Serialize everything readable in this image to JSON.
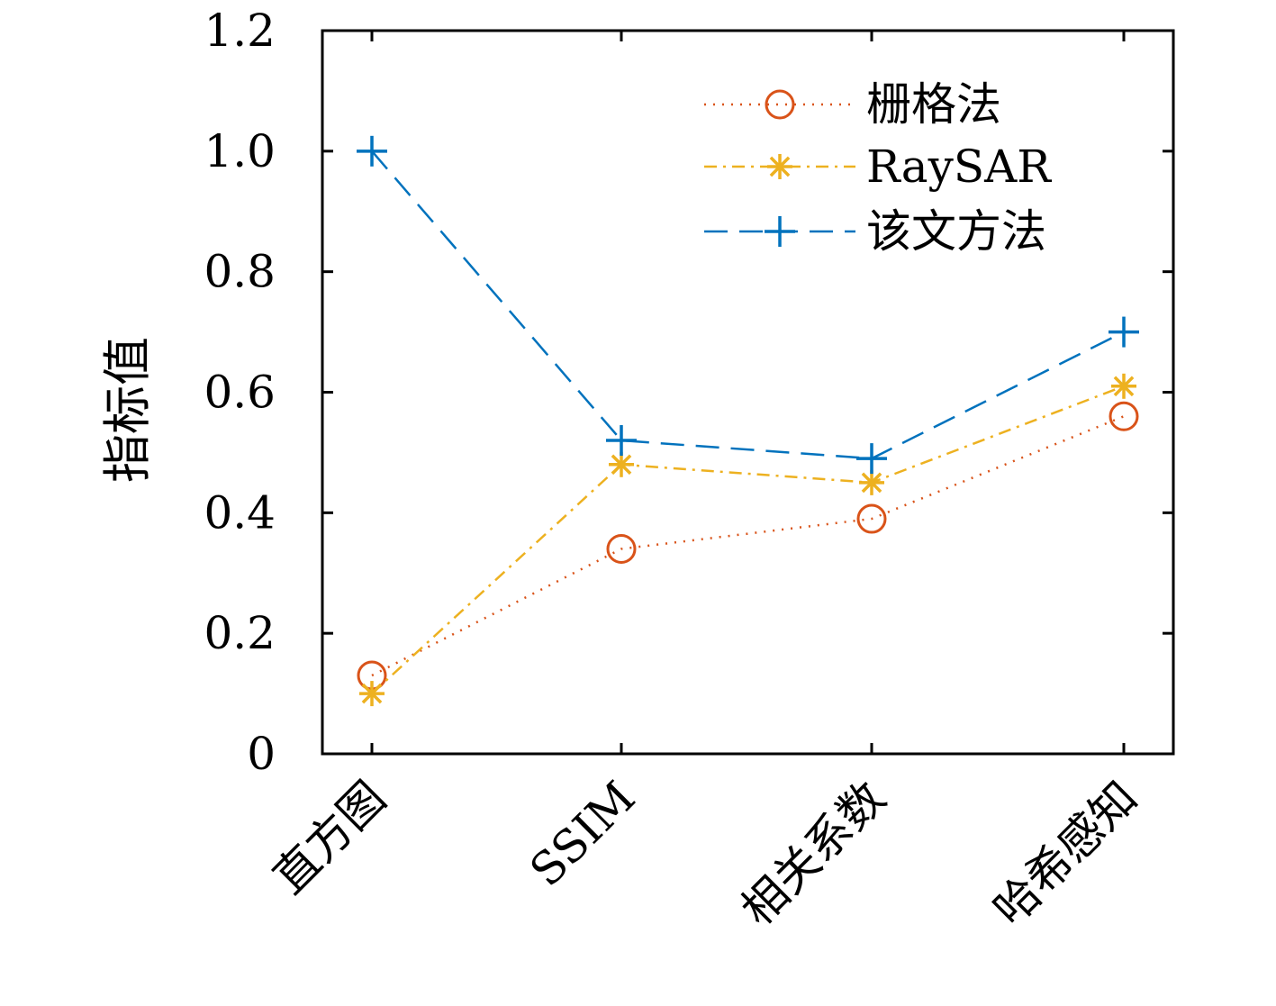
{
  "chart_data": {
    "type": "line",
    "title": "",
    "xlabel": "",
    "ylabel": "指标值",
    "categories": [
      "直方图",
      "SSIM",
      "相关系数",
      "哈希感知"
    ],
    "ylim": [
      0,
      1.2
    ],
    "yticks": [
      "0",
      "0.2",
      "0.4",
      "0.6",
      "0.8",
      "1.0",
      "1.2"
    ],
    "grid": false,
    "legend_position": "top-right",
    "series": [
      {
        "name": "栅格法",
        "values": [
          0.13,
          0.34,
          0.39,
          0.56
        ],
        "color": "#D95319",
        "line_style": "dotted",
        "marker": "circle"
      },
      {
        "name": "RaySAR",
        "values": [
          0.1,
          0.48,
          0.45,
          0.61
        ],
        "color": "#EDB120",
        "line_style": "dashdot",
        "marker": "asterisk"
      },
      {
        "name": "该文方法",
        "values": [
          1.0,
          0.52,
          0.49,
          0.7
        ],
        "color": "#0072BD",
        "line_style": "dashed",
        "marker": "plus"
      }
    ]
  }
}
